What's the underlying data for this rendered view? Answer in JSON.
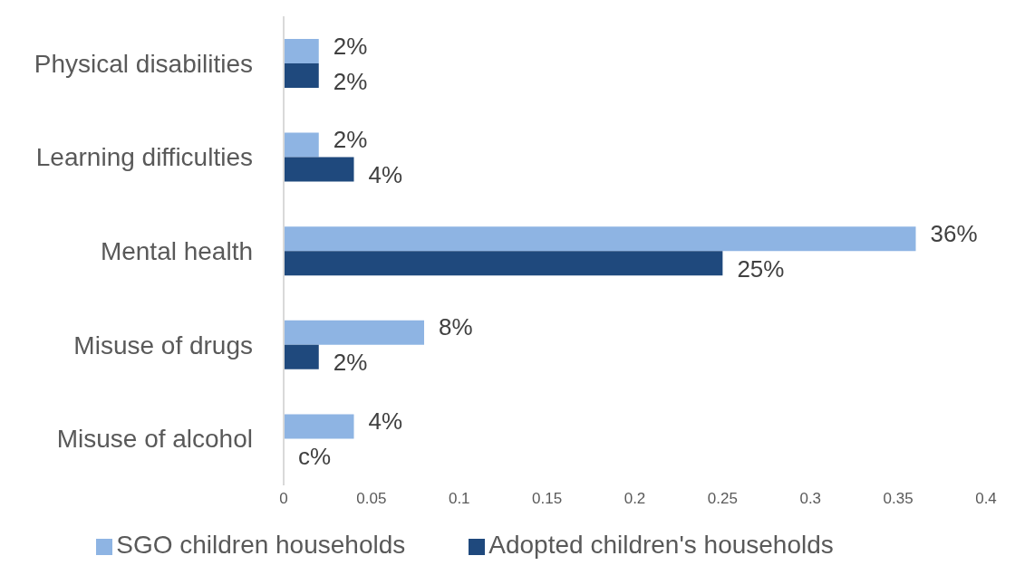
{
  "chart_data": {
    "type": "bar",
    "orientation": "horizontal",
    "categories": [
      "Physical disabilities",
      "Learning difficulties",
      "Mental health",
      "Misuse of drugs",
      "Misuse of alcohol"
    ],
    "series": [
      {
        "name": "SGO children households",
        "color": "#8eb4e3",
        "values": [
          0.02,
          0.02,
          0.36,
          0.08,
          0.04
        ],
        "value_labels": [
          "2%",
          "2%",
          "36%",
          "8%",
          "4%"
        ]
      },
      {
        "name": "Adopted children's households",
        "color": "#1f497d",
        "values": [
          0.02,
          0.04,
          0.25,
          0.02,
          null
        ],
        "value_labels": [
          "2%",
          "4%",
          "25%",
          "2%",
          "c%"
        ]
      }
    ],
    "xlim": [
      0,
      0.4
    ],
    "xticks": [
      0,
      0.05,
      0.1,
      0.15,
      0.2,
      0.25,
      0.3,
      0.35,
      0.4
    ],
    "grid": false,
    "legend": "bottom"
  }
}
